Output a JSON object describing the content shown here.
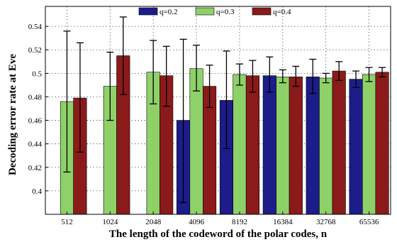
{
  "chart_data": {
    "type": "bar",
    "xlabel": "The length of the codeword of the polar codes, n",
    "ylabel": "Decoding error rate at Eve",
    "categories": [
      "512",
      "1024",
      "2048",
      "4096",
      "8192",
      "16384",
      "32768",
      "65536"
    ],
    "ylim": [
      0.38,
      0.557
    ],
    "yticks": [
      0.4,
      0.42,
      0.44,
      0.46,
      0.48,
      0.5,
      0.52,
      0.54
    ],
    "grid": true,
    "legend_position": "top",
    "series": [
      {
        "name": "q=0.2",
        "color": "#1c1c8a",
        "values": [
          null,
          null,
          null,
          0.46,
          0.477,
          0.498,
          0.497,
          0.495
        ],
        "err_low": [
          null,
          null,
          null,
          0.39,
          0.436,
          0.484,
          0.483,
          0.488
        ],
        "err_high": [
          null,
          null,
          null,
          0.529,
          0.519,
          0.514,
          0.512,
          0.502
        ]
      },
      {
        "name": "q=0.3",
        "color": "#8fd169",
        "values": [
          0.476,
          0.489,
          0.501,
          0.504,
          0.499,
          0.497,
          0.496,
          0.499
        ],
        "err_low": [
          0.416,
          0.46,
          0.474,
          0.485,
          0.49,
          0.492,
          0.492,
          0.493
        ],
        "err_high": [
          0.536,
          0.518,
          0.528,
          0.524,
          0.508,
          0.503,
          0.5,
          0.505
        ]
      },
      {
        "name": "q=0.4",
        "color": "#8b1a1a",
        "values": [
          0.479,
          0.515,
          0.498,
          0.489,
          0.498,
          0.497,
          0.502,
          0.501
        ],
        "err_low": [
          0.433,
          0.482,
          0.472,
          0.471,
          0.484,
          0.489,
          0.494,
          0.497
        ],
        "err_high": [
          0.526,
          0.548,
          0.523,
          0.507,
          0.511,
          0.506,
          0.51,
          0.505
        ]
      }
    ]
  }
}
